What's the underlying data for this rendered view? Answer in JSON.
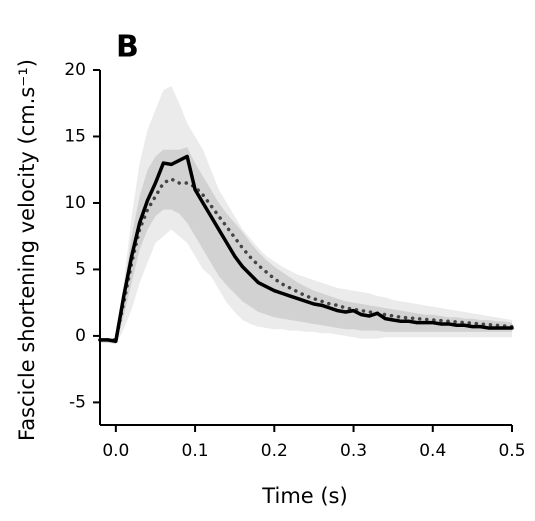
{
  "chart_data": {
    "type": "line",
    "panel_label": "B",
    "xlabel": "Time (s)",
    "ylabel": "Fascicle shortening velocity (cm.s⁻¹)",
    "xlim": [
      -0.02,
      0.5
    ],
    "ylim": [
      -6.7,
      20
    ],
    "xticks": [
      {
        "value": 0,
        "label": "0.0"
      },
      0.1,
      0.2,
      0.3,
      0.4,
      0.5
    ],
    "yticks": [
      -5,
      0,
      5,
      10,
      15,
      20
    ],
    "x": [
      -0.02,
      -0.01,
      0,
      0.01,
      0.02,
      0.03,
      0.04,
      0.05,
      0.06,
      0.07,
      0.08,
      0.09,
      0.1,
      0.11,
      0.12,
      0.13,
      0.14,
      0.15,
      0.16,
      0.17,
      0.18,
      0.19,
      0.2,
      0.21,
      0.22,
      0.23,
      0.24,
      0.25,
      0.26,
      0.27,
      0.28,
      0.29,
      0.3,
      0.31,
      0.32,
      0.33,
      0.34,
      0.35,
      0.36,
      0.37,
      0.38,
      0.39,
      0.4,
      0.41,
      0.42,
      0.43,
      0.44,
      0.45,
      0.46,
      0.47,
      0.48,
      0.49,
      0.5
    ],
    "bands": [
      {
        "color": "#ebebeb",
        "upper": [
          -0.2,
          -0.2,
          -0.2,
          4,
          9,
          13,
          15.5,
          17,
          18.5,
          18.8,
          17.5,
          16,
          15,
          14,
          12.5,
          11,
          10,
          9,
          8,
          7.3,
          6.6,
          6,
          5.6,
          5.2,
          4.9,
          4.6,
          4.4,
          4.2,
          4,
          3.8,
          3.6,
          3.5,
          3.4,
          3.3,
          3.2,
          3,
          2.9,
          2.7,
          2.6,
          2.5,
          2.4,
          2.3,
          2.2,
          2.1,
          2,
          1.9,
          1.8,
          1.7,
          1.6,
          1.5,
          1.4,
          1.3,
          1.2
        ],
        "lower": [
          -0.5,
          -0.5,
          -0.6,
          0.5,
          2,
          4,
          5.5,
          7,
          7.5,
          8,
          7.5,
          7,
          6,
          5,
          4.5,
          3.5,
          2.5,
          1.8,
          1.2,
          0.9,
          0.7,
          0.6,
          0.5,
          0.5,
          0.4,
          0.4,
          0.3,
          0.3,
          0.2,
          0.2,
          0.1,
          0,
          -0.1,
          -0.2,
          -0.2,
          -0.2,
          -0.1,
          -0.1,
          -0.1,
          -0.1,
          -0.1,
          -0.1,
          -0.1,
          -0.1,
          -0.1,
          -0.1,
          -0.1,
          -0.1,
          -0.1,
          -0.1,
          -0.1,
          -0.1,
          -0.1
        ]
      },
      {
        "color": "#d2d2d2",
        "upper": [
          -0.2,
          -0.2,
          -0.2,
          3.5,
          7.5,
          10.5,
          12.5,
          13.5,
          14,
          14,
          14,
          14.2,
          13,
          12,
          11,
          10,
          9.2,
          8.5,
          7.8,
          7,
          6.3,
          5.7,
          5.2,
          4.8,
          4.4,
          4,
          3.7,
          3.4,
          3.2,
          3,
          2.8,
          2.6,
          2.5,
          2.4,
          2.3,
          2.2,
          2.1,
          2,
          1.9,
          1.8,
          1.7,
          1.6,
          1.6,
          1.5,
          1.4,
          1.4,
          1.3,
          1.3,
          1.2,
          1.2,
          1.1,
          1.1,
          1
        ],
        "lower": [
          -0.5,
          -0.5,
          -0.6,
          1.5,
          4,
          6.5,
          8,
          9,
          9.5,
          9.5,
          9.2,
          8.5,
          7.5,
          6.5,
          5.5,
          4.5,
          3.8,
          3.2,
          2.6,
          2.2,
          1.8,
          1.6,
          1.4,
          1.3,
          1.2,
          1.1,
          1,
          0.9,
          0.8,
          0.7,
          0.6,
          0.5,
          0.5,
          0.4,
          0.4,
          0.4,
          0.3,
          0.3,
          0.3,
          0.3,
          0.3,
          0.3,
          0.3,
          0.3,
          0.3,
          0.3,
          0.3,
          0.3,
          0.3,
          0.3,
          0.3,
          0.3,
          0.3
        ]
      }
    ],
    "series": [
      {
        "color": "#444444",
        "linestyle": "dotted",
        "values": [
          -0.3,
          -0.3,
          -0.3,
          2.5,
          5.5,
          8,
          9.5,
          10.5,
          11.5,
          11.8,
          11.5,
          11.5,
          11.2,
          10.6,
          9.8,
          9,
          8.2,
          7.4,
          6.6,
          5.9,
          5.3,
          4.8,
          4.3,
          3.9,
          3.6,
          3.3,
          3,
          2.8,
          2.6,
          2.4,
          2.3,
          2.1,
          2,
          1.9,
          1.8,
          1.7,
          1.6,
          1.5,
          1.4,
          1.35,
          1.3,
          1.25,
          1.2,
          1.15,
          1.1,
          1.05,
          1,
          0.95,
          0.9,
          0.85,
          0.8,
          0.75,
          0.7
        ]
      },
      {
        "color": "#000000",
        "linestyle": "solid",
        "values": [
          -0.3,
          -0.3,
          -0.4,
          3,
          6,
          8.5,
          10.2,
          11.5,
          13,
          12.9,
          13.2,
          13.5,
          11,
          10,
          9,
          8,
          7,
          6,
          5.2,
          4.6,
          4,
          3.7,
          3.4,
          3.2,
          3,
          2.8,
          2.6,
          2.4,
          2.3,
          2.1,
          1.9,
          1.8,
          1.9,
          1.6,
          1.5,
          1.7,
          1.3,
          1.2,
          1.1,
          1.1,
          1,
          1,
          1,
          0.9,
          0.9,
          0.8,
          0.8,
          0.7,
          0.7,
          0.6,
          0.6,
          0.6,
          0.6
        ]
      }
    ]
  }
}
